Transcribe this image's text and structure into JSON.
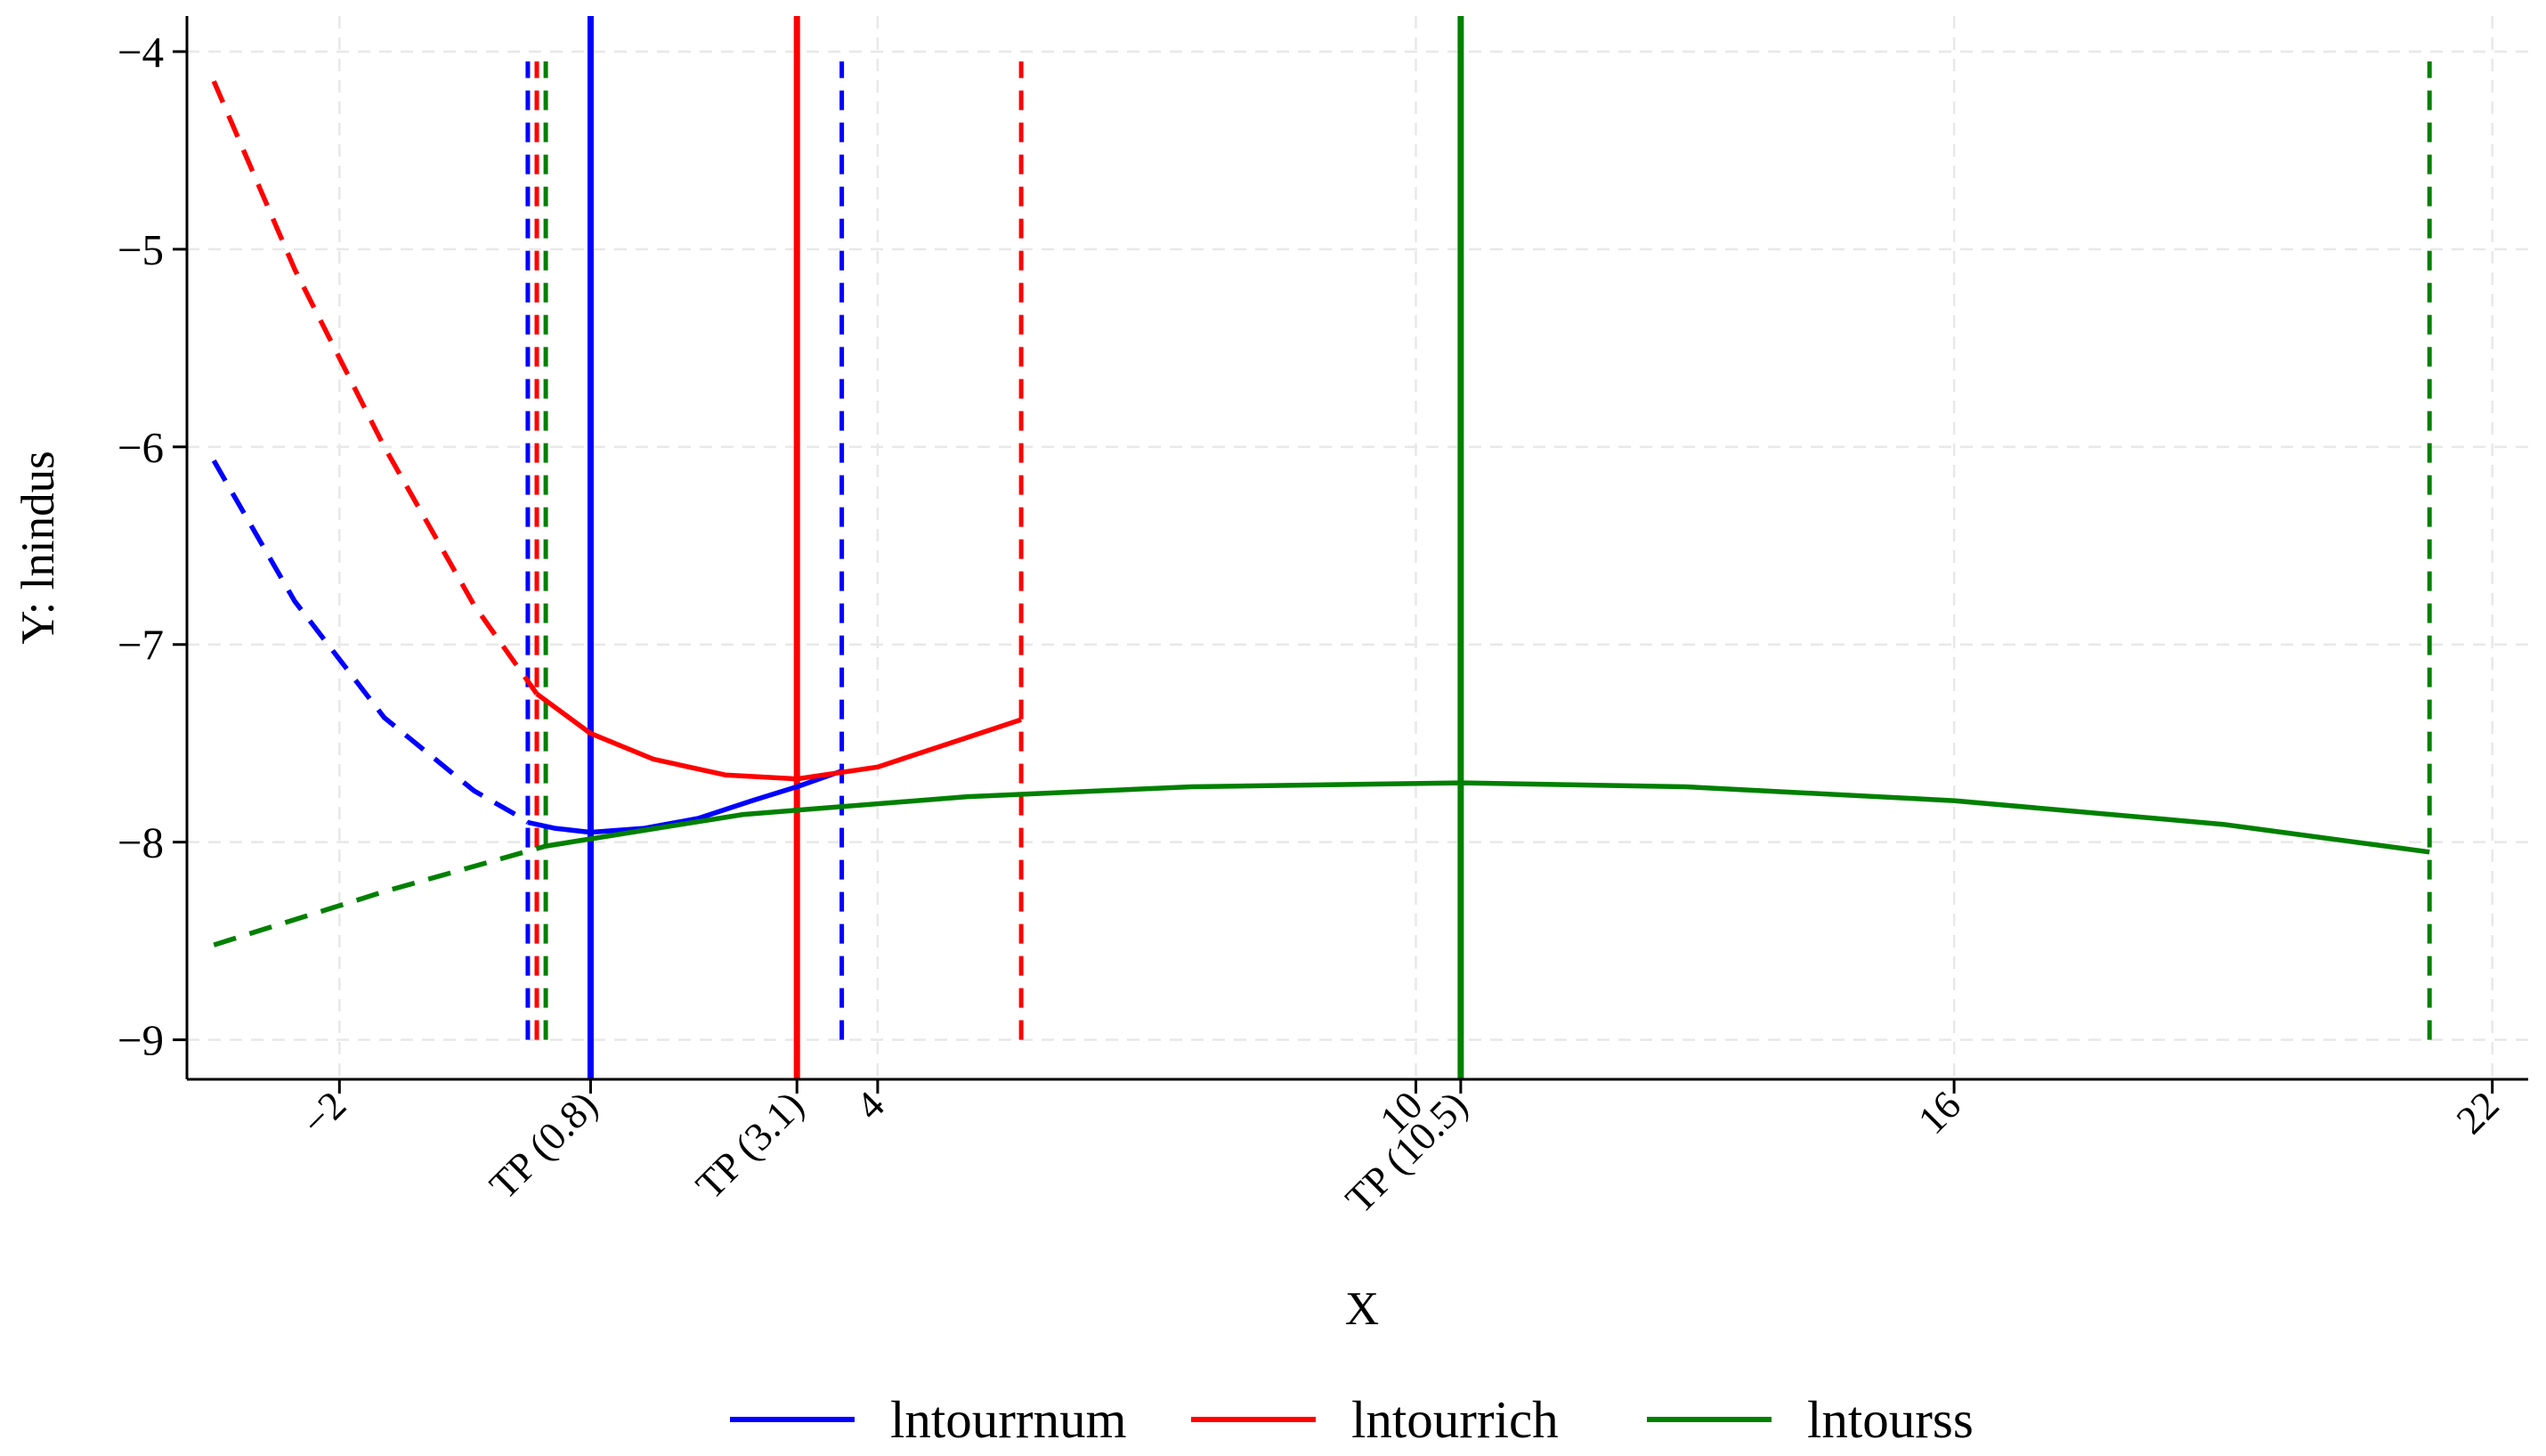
{
  "chart_data": {
    "type": "line",
    "xlabel": "X",
    "ylabel": "Y: lnindus",
    "xlim": [
      -3.7,
      22.4
    ],
    "ylim": [
      -9.2,
      -3.82
    ],
    "x_ticks": [
      {
        "value": -2,
        "label": "−2"
      },
      {
        "value": 0.8,
        "label": "TP (0.8)"
      },
      {
        "value": 3.1,
        "label": "TP (3.1)"
      },
      {
        "value": 4,
        "label": "4"
      },
      {
        "value": 10,
        "label": "10"
      },
      {
        "value": 10.5,
        "label": "TP (10.5)"
      },
      {
        "value": 16,
        "label": "16"
      },
      {
        "value": 22,
        "label": "22"
      }
    ],
    "y_ticks": [
      {
        "value": -4,
        "label": "−4"
      },
      {
        "value": -5,
        "label": "−5"
      },
      {
        "value": -6,
        "label": "−6"
      },
      {
        "value": -7,
        "label": "−7"
      },
      {
        "value": -8,
        "label": "−8"
      },
      {
        "value": -9,
        "label": "−9"
      }
    ],
    "grid": true,
    "legend_position": "bottom",
    "series": [
      {
        "name": "lntourrnum",
        "color": "#0000ff",
        "curve_dashed": [
          [
            -3.4,
            -6.07
          ],
          [
            -2.5,
            -6.78
          ],
          [
            -1.5,
            -7.37
          ],
          [
            -0.5,
            -7.74
          ],
          [
            0.0,
            -7.87
          ],
          [
            0.1,
            -7.9
          ]
        ],
        "curve_solid": [
          [
            0.1,
            -7.9
          ],
          [
            0.4,
            -7.93
          ],
          [
            0.8,
            -7.95
          ],
          [
            1.4,
            -7.93
          ],
          [
            2.0,
            -7.88
          ],
          [
            2.6,
            -7.79
          ],
          [
            3.1,
            -7.72
          ],
          [
            3.6,
            -7.64
          ]
        ],
        "turning_point": 0.8,
        "range_lines": [
          0.1,
          3.6
        ],
        "vline_y_range": [
          -9.0,
          -4.05
        ]
      },
      {
        "name": "lntourrich",
        "color": "#ff0000",
        "curve_dashed": [
          [
            -3.4,
            -4.15
          ],
          [
            -2.5,
            -5.1
          ],
          [
            -1.5,
            -6.0
          ],
          [
            -0.5,
            -6.8
          ],
          [
            0.2,
            -7.25
          ]
        ],
        "curve_solid": [
          [
            0.2,
            -7.25
          ],
          [
            0.8,
            -7.45
          ],
          [
            1.5,
            -7.58
          ],
          [
            2.3,
            -7.66
          ],
          [
            3.1,
            -7.68
          ],
          [
            4.0,
            -7.62
          ],
          [
            5.0,
            -7.47
          ],
          [
            5.6,
            -7.38
          ]
        ],
        "turning_point": 3.1,
        "range_lines": [
          0.2,
          5.6
        ],
        "vline_y_range": [
          -9.0,
          -4.05
        ]
      },
      {
        "name": "lntourss",
        "color": "#008000",
        "curve_dashed": [
          [
            -3.4,
            -8.52
          ],
          [
            -1.5,
            -8.25
          ],
          [
            0.3,
            -8.02
          ]
        ],
        "curve_solid": [
          [
            0.3,
            -8.02
          ],
          [
            2.5,
            -7.86
          ],
          [
            5.0,
            -7.77
          ],
          [
            7.5,
            -7.72
          ],
          [
            10.5,
            -7.7
          ],
          [
            13.0,
            -7.72
          ],
          [
            16.0,
            -7.79
          ],
          [
            19.0,
            -7.91
          ],
          [
            21.3,
            -8.05
          ]
        ],
        "turning_point": 10.5,
        "range_lines": [
          0.3,
          21.3
        ],
        "vline_y_range": [
          -9.0,
          -4.05
        ]
      }
    ]
  }
}
